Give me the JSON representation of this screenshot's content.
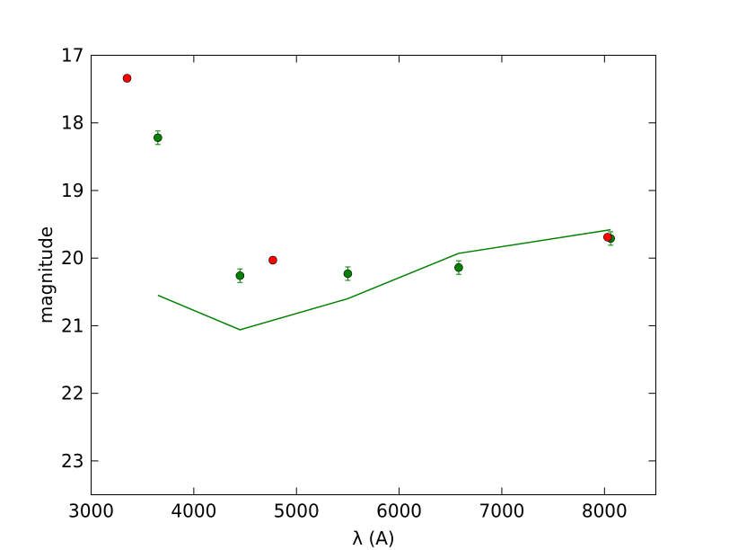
{
  "chart_data": {
    "type": "scatter",
    "title": "",
    "xlabel": "λ (A)",
    "ylabel": "magnitude",
    "xlim": [
      3000,
      8500
    ],
    "ylim": [
      17,
      23.5
    ],
    "y_inverted": true,
    "grid": false,
    "x_ticks": [
      3000,
      4000,
      5000,
      6000,
      7000,
      8000
    ],
    "y_ticks": [
      17,
      18,
      19,
      20,
      21,
      22,
      23
    ],
    "series": [
      {
        "kind": "line",
        "color": "#008000",
        "x": [
          3650,
          4450,
          5500,
          6580,
          8060
        ],
        "y": [
          20.55,
          21.06,
          20.6,
          19.93,
          19.58
        ]
      },
      {
        "kind": "errorbar-points",
        "color": "#008000",
        "x": [
          3650,
          4450,
          5500,
          6580,
          8060
        ],
        "y": [
          18.22,
          20.26,
          20.23,
          20.14,
          19.71
        ],
        "yerr": [
          0.1,
          0.1,
          0.1,
          0.1,
          0.1
        ]
      },
      {
        "kind": "points",
        "color": "#ff0000",
        "x": [
          3350,
          4770,
          8030
        ],
        "y": [
          17.34,
          20.03,
          19.69
        ]
      }
    ]
  }
}
